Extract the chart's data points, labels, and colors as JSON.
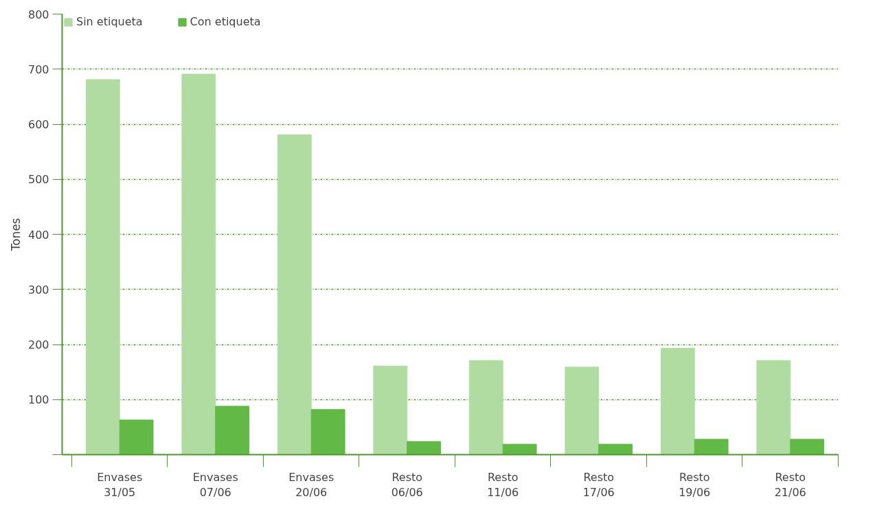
{
  "chart_data": {
    "type": "bar",
    "ylabel": "Tones",
    "categories": [
      "Envases 31/05",
      "Envases 07/06",
      "Envases 20/06",
      "Resto 06/06",
      "Resto 11/06",
      "Resto 17/06",
      "Resto 19/06",
      "Resto 21/06"
    ],
    "series": [
      {
        "name": "Sin etiqueta",
        "color": "#b0dca2",
        "values": [
          681,
          691,
          581,
          161,
          171,
          159,
          193,
          171
        ]
      },
      {
        "name": "Con etiqueta",
        "color": "#62b946",
        "values": [
          63,
          88,
          82,
          24,
          19,
          19,
          28,
          28
        ]
      }
    ],
    "ylim": [
      0,
      800
    ],
    "yticks": [
      {
        "value": 0,
        "label": null
      },
      100,
      200,
      300,
      400,
      500,
      600,
      700,
      800
    ],
    "grid": "y",
    "legend": "top left"
  }
}
